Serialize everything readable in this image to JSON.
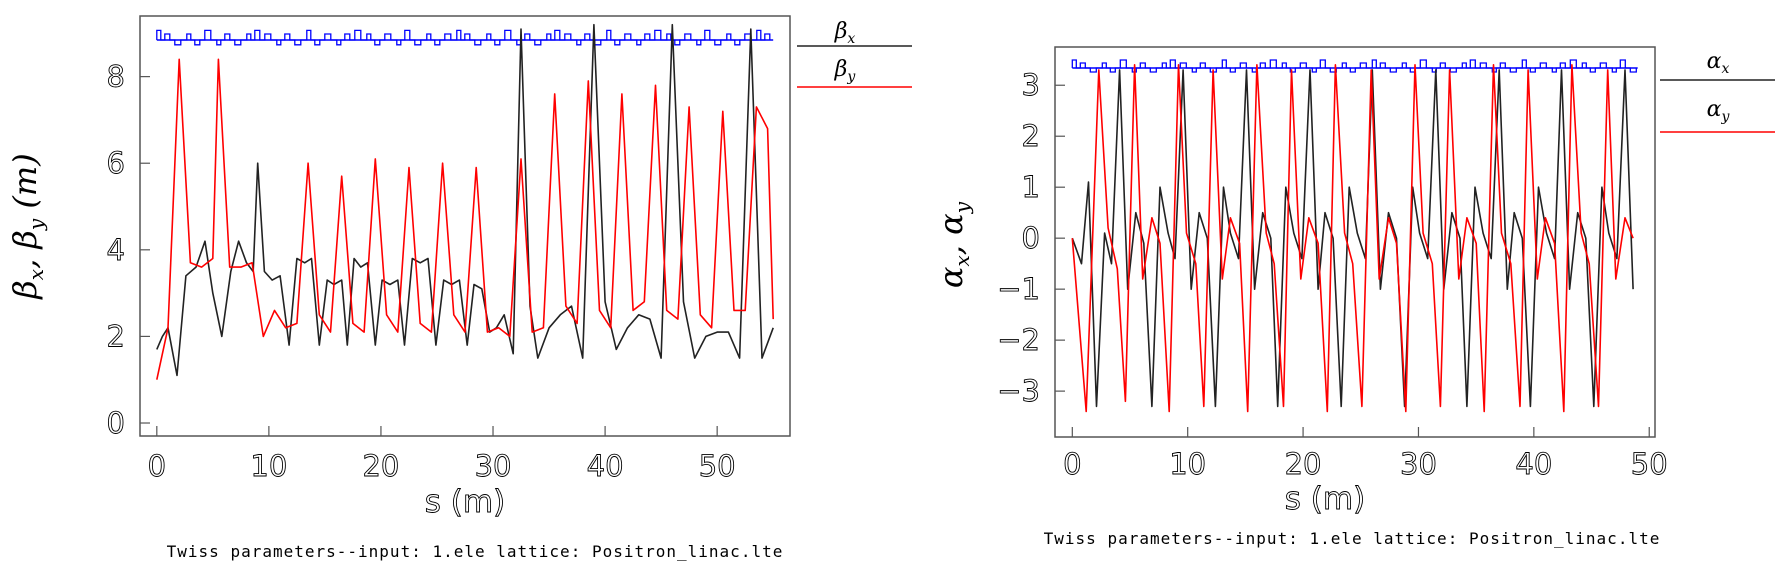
{
  "colors": {
    "black_series": "#222222",
    "red_series": "#ff0000",
    "blue_profile": "#0000ff"
  },
  "chart_data": [
    {
      "type": "line",
      "xlabel": "s  (m)",
      "ylabel": {
        "a": "β",
        "a_sub": "x",
        "sep": ",  ",
        "b": "β",
        "b_sub": "y",
        "unit": " (m)"
      },
      "caption": "Twiss parameters--input: 1.ele   lattice: Positron_linac.lte",
      "xlim": [
        -1.5,
        56.5
      ],
      "ylim": [
        -0.3,
        9.4
      ],
      "xticks": [
        0,
        10,
        20,
        30,
        40,
        50
      ],
      "xtick_labels": [
        "0",
        "10",
        "20",
        "30",
        "40",
        "50"
      ],
      "yticks": [
        0,
        2,
        4,
        6,
        8
      ],
      "ytick_labels": [
        "0",
        "2",
        "4",
        "6",
        "8"
      ],
      "legend": [
        {
          "sym": "β",
          "sub": "x",
          "color": "#222222"
        },
        {
          "sym": "β",
          "sub": "y",
          "color": "#ff0000"
        }
      ],
      "series": [
        {
          "legend_index": 0,
          "color": "#222222",
          "x": [
            0,
            0.5,
            1.0,
            1.8,
            2.6,
            3.5,
            4.3,
            5.0,
            5.8,
            6.6,
            7.3,
            8.0,
            8.6,
            9.0,
            9.6,
            10.3,
            11.0,
            11.8,
            12.5,
            13.2,
            13.8,
            14.5,
            15.2,
            15.8,
            16.5,
            17.0,
            17.6,
            18.2,
            18.8,
            19.5,
            20.1,
            20.8,
            21.5,
            22.1,
            22.8,
            23.5,
            24.2,
            24.9,
            25.6,
            26.3,
            27.0,
            27.7,
            28.3,
            29.0,
            29.7,
            30.3,
            31.0,
            31.8,
            32.5,
            33.3,
            34.0,
            35.0,
            36.0,
            37.0,
            38.0,
            39.0,
            40.0,
            41.0,
            42.0,
            43.0,
            44.0,
            45.0,
            46.0,
            47.0,
            48.0,
            49.0,
            50.0,
            51.0,
            52.0,
            53.0,
            54.0,
            55.0
          ],
          "y": [
            1.7,
            2.0,
            2.2,
            1.1,
            3.4,
            3.6,
            4.2,
            3.0,
            2.0,
            3.5,
            4.2,
            3.7,
            3.5,
            6.0,
            3.5,
            3.3,
            3.4,
            1.8,
            3.8,
            3.7,
            3.8,
            1.8,
            3.3,
            3.2,
            3.3,
            1.8,
            3.8,
            3.6,
            3.7,
            1.8,
            3.3,
            3.2,
            3.3,
            1.8,
            3.8,
            3.7,
            3.8,
            1.8,
            3.3,
            3.2,
            3.3,
            1.8,
            3.2,
            3.1,
            2.1,
            2.2,
            2.5,
            1.6,
            9.1,
            2.7,
            1.5,
            2.2,
            2.5,
            2.7,
            1.5,
            9.2,
            2.8,
            1.7,
            2.2,
            2.5,
            2.4,
            1.5,
            9.2,
            2.8,
            1.5,
            2.0,
            2.1,
            2.1,
            1.5,
            9.1,
            1.5,
            2.2
          ]
        },
        {
          "legend_index": 1,
          "color": "#ff0000",
          "x": [
            0,
            1.0,
            2.0,
            3.0,
            4.0,
            5.0,
            5.5,
            6.5,
            7.5,
            8.5,
            9.5,
            10.5,
            11.5,
            12.5,
            13.5,
            14.5,
            15.5,
            16.5,
            17.5,
            18.5,
            19.5,
            20.5,
            21.5,
            22.5,
            23.5,
            24.5,
            25.5,
            26.5,
            27.5,
            28.5,
            29.5,
            30.5,
            31.5,
            32.5,
            33.5,
            34.5,
            35.5,
            36.5,
            37.5,
            38.5,
            39.5,
            40.5,
            41.5,
            42.5,
            43.5,
            44.5,
            45.5,
            46.5,
            47.5,
            48.5,
            49.5,
            50.5,
            51.5,
            52.5,
            53.5,
            54.5,
            55.0
          ],
          "y": [
            1.0,
            2.2,
            8.4,
            3.7,
            3.6,
            3.8,
            8.4,
            3.6,
            3.6,
            3.7,
            2.0,
            2.6,
            2.2,
            2.3,
            6.0,
            2.5,
            2.1,
            5.7,
            2.3,
            2.1,
            6.1,
            2.5,
            2.1,
            5.9,
            2.3,
            2.1,
            6.0,
            2.5,
            2.1,
            5.9,
            2.1,
            2.2,
            2.0,
            6.1,
            2.1,
            2.2,
            7.6,
            2.7,
            2.3,
            7.9,
            2.6,
            2.2,
            7.6,
            2.6,
            2.8,
            7.8,
            2.6,
            2.4,
            7.3,
            2.5,
            2.2,
            7.2,
            2.6,
            2.6,
            7.3,
            6.8,
            2.4
          ]
        }
      ]
    },
    {
      "type": "line",
      "xlabel": "s  (m)",
      "ylabel": {
        "a": "α",
        "a_sub": "x",
        "sep": ",  ",
        "b": "α",
        "b_sub": "y",
        "unit": ""
      },
      "caption": "Twiss parameters--input: 1.ele   lattice: Positron_linac.lte",
      "xlim": [
        -1.5,
        50.5
      ],
      "ylim": [
        -3.9,
        3.75
      ],
      "xticks": [
        0,
        10,
        20,
        30,
        40,
        50
      ],
      "xtick_labels": [
        "0",
        "10",
        "20",
        "30",
        "40",
        "50"
      ],
      "yticks": [
        -3,
        -2,
        -1,
        0,
        1,
        2,
        3
      ],
      "ytick_labels": [
        "−3",
        "−2",
        "−1",
        "0",
        "1",
        "2",
        "3"
      ],
      "legend": [
        {
          "sym": "α",
          "sub": "x",
          "color": "#222222"
        },
        {
          "sym": "α",
          "sub": "y",
          "color": "#ff0000"
        }
      ],
      "series": [
        {
          "legend_index": 0,
          "color": "#222222",
          "x": [
            0,
            0.8,
            1.4,
            2.1,
            2.8,
            3.4,
            4.1,
            4.8,
            5.5,
            6.2,
            6.9,
            7.6,
            8.3,
            8.9,
            9.6,
            10.3,
            11.0,
            11.7,
            12.4,
            13.1,
            13.7,
            14.4,
            15.1,
            15.8,
            16.5,
            17.2,
            17.8,
            18.5,
            19.2,
            19.9,
            20.6,
            21.3,
            21.9,
            22.6,
            23.3,
            24.0,
            24.7,
            25.4,
            26.0,
            26.7,
            27.4,
            28.1,
            28.8,
            29.5,
            30.1,
            30.8,
            31.5,
            32.2,
            32.9,
            33.6,
            34.2,
            34.9,
            35.6,
            36.3,
            37.0,
            37.7,
            38.3,
            39.0,
            39.7,
            40.4,
            41.1,
            41.8,
            42.4,
            43.1,
            43.8,
            44.5,
            45.2,
            45.9,
            46.5,
            47.2,
            47.9,
            48.6
          ],
          "y": [
            0,
            -0.5,
            1.1,
            -3.3,
            0.1,
            -0.5,
            3.3,
            -1.0,
            0.5,
            -0.1,
            -3.3,
            1.0,
            0.1,
            -0.4,
            3.3,
            -1.0,
            0.5,
            0,
            -3.3,
            1.0,
            0.1,
            -0.4,
            3.3,
            -1.0,
            0.5,
            0,
            -3.3,
            1.0,
            0.1,
            -0.4,
            3.3,
            -1.0,
            0.5,
            0,
            -3.3,
            1.0,
            0.1,
            -0.4,
            3.3,
            -1.0,
            0.5,
            0,
            -3.3,
            1.0,
            0.1,
            -0.4,
            3.3,
            -1.0,
            0.5,
            0,
            -3.3,
            1.0,
            0.1,
            -0.4,
            3.3,
            -1.0,
            0.5,
            0,
            -3.3,
            1.0,
            0.1,
            -0.4,
            3.3,
            -1.0,
            0.5,
            0,
            -3.3,
            1.0,
            0.1,
            -0.4,
            3.3,
            -1.0
          ]
        },
        {
          "legend_index": 1,
          "color": "#ff0000",
          "x": [
            0,
            1.2,
            2.3,
            3.1,
            3.9,
            4.6,
            5.4,
            6.1,
            6.9,
            7.6,
            8.4,
            9.2,
            9.9,
            10.7,
            11.4,
            12.2,
            13.0,
            13.7,
            14.5,
            15.2,
            16.0,
            16.8,
            17.5,
            18.3,
            19.0,
            19.8,
            20.5,
            21.3,
            22.1,
            22.8,
            23.6,
            24.3,
            25.1,
            25.9,
            26.6,
            27.4,
            28.1,
            28.9,
            29.7,
            30.4,
            31.2,
            31.9,
            32.7,
            33.5,
            34.2,
            35.0,
            35.7,
            36.5,
            37.2,
            38.0,
            38.8,
            39.5,
            40.3,
            41.0,
            41.8,
            42.6,
            43.3,
            44.1,
            44.8,
            45.6,
            46.4,
            47.1,
            47.9,
            48.6
          ],
          "y": [
            0,
            -3.4,
            3.3,
            0.2,
            -0.6,
            -3.2,
            3.4,
            -0.8,
            0.4,
            -0.1,
            -3.4,
            3.4,
            0.1,
            -0.5,
            -3.3,
            3.3,
            -0.8,
            0.4,
            -0.1,
            -3.4,
            3.4,
            0.1,
            -0.5,
            -3.3,
            3.3,
            -0.8,
            0.4,
            -0.1,
            -3.4,
            3.4,
            0.1,
            -0.5,
            -3.3,
            3.3,
            -0.8,
            0.4,
            -0.1,
            -3.4,
            3.4,
            0.1,
            -0.5,
            -3.3,
            3.3,
            -0.8,
            0.4,
            -0.1,
            -3.4,
            3.4,
            0.1,
            -0.5,
            -3.3,
            3.3,
            -0.8,
            0.4,
            -0.1,
            -3.4,
            3.4,
            0.1,
            -0.5,
            -3.3,
            3.3,
            -0.8,
            0.4,
            0
          ]
        }
      ]
    }
  ]
}
